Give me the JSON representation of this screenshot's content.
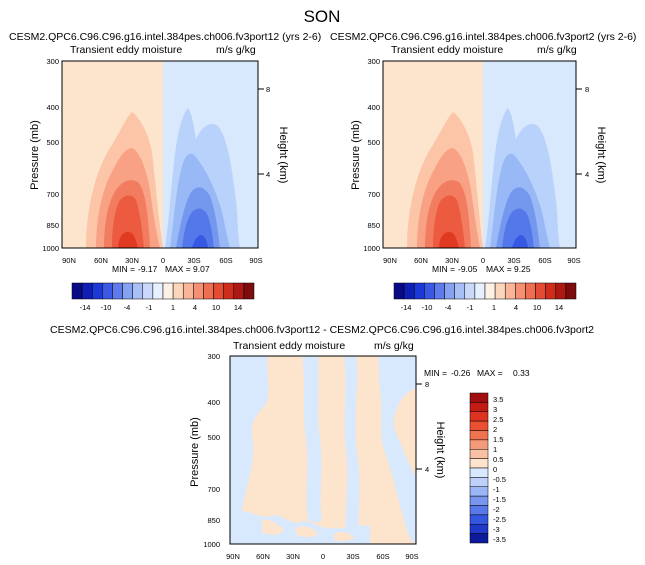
{
  "page": {
    "season": "SON"
  },
  "chart_data": [
    {
      "type": "heatmap",
      "name": "panel-1",
      "case_title": "CESM2.QPC6.C96.C96.g16.intel.384pes.ch006.fv3port12 (yrs 2-6)",
      "variable": "Transient eddy moisture",
      "units": "m/s g/kg",
      "ylabel": "Pressure (mb)",
      "y2label": "Height (km)",
      "x_ticks": [
        "90N",
        "60N",
        "30N",
        "0",
        "30S",
        "60S",
        "90S"
      ],
      "x_values": [
        90,
        60,
        30,
        0,
        -30,
        -60,
        -90
      ],
      "y_ticks": [
        300,
        400,
        500,
        700,
        850,
        1000
      ],
      "y2_ticks": [
        8,
        4
      ],
      "ylim": [
        1000,
        300
      ],
      "min_label": "MIN =",
      "min": "-9.17",
      "max_label": "MAX =",
      "max": "9.07",
      "colorbar": [
        "-14",
        "-10",
        "-4",
        "-1",
        "1",
        "4",
        "10",
        "14"
      ]
    },
    {
      "type": "heatmap",
      "name": "panel-2",
      "case_title": "CESM2.QPC6.C96.C96.g16.intel.384pes.ch006.fv3port2 (yrs 2-6)",
      "variable": "Transient eddy moisture",
      "units": "m/s g/kg",
      "ylabel": "Pressure (mb)",
      "y2label": "Height (km)",
      "x_ticks": [
        "90N",
        "60N",
        "30N",
        "0",
        "30S",
        "60S",
        "90S"
      ],
      "x_values": [
        90,
        60,
        30,
        0,
        -30,
        -60,
        -90
      ],
      "y_ticks": [
        300,
        400,
        500,
        700,
        850,
        1000
      ],
      "y2_ticks": [
        8,
        4
      ],
      "ylim": [
        1000,
        300
      ],
      "min_label": "MIN =",
      "min": "-9.05",
      "max_label": "MAX =",
      "max": "9.25",
      "colorbar": [
        "-14",
        "-10",
        "-4",
        "-1",
        "1",
        "4",
        "10",
        "14"
      ]
    },
    {
      "type": "heatmap",
      "name": "difference",
      "case_title": "CESM2.QPC6.C96.C96.g16.intel.384pes.ch006.fv3port12 - CESM2.QPC6.C96.C96.g16.intel.384pes.ch006.fv3port2",
      "variable": "Transient eddy moisture",
      "units": "m/s g/kg",
      "ylabel": "Pressure (mb)",
      "y2label": "Height (km)",
      "x_ticks": [
        "90N",
        "60N",
        "30N",
        "0",
        "30S",
        "60S",
        "90S"
      ],
      "x_values": [
        90,
        60,
        30,
        0,
        -30,
        -60,
        -90
      ],
      "y_ticks": [
        300,
        400,
        500,
        700,
        850,
        1000
      ],
      "y2_ticks": [
        8,
        4
      ],
      "ylim": [
        1000,
        300
      ],
      "min_label": "MIN =",
      "min": "-0.26",
      "max_label": "MAX =",
      "max": "0.33",
      "colorbar": [
        "3.5",
        "3",
        "2.5",
        "2",
        "1.5",
        "1",
        "0.5",
        "0",
        "-0.5",
        "-1",
        "-1.5",
        "-2",
        "-2.5",
        "-3",
        "-3.5"
      ]
    }
  ],
  "colors": {
    "warm": [
      "#fde4cd",
      "#fcc5a8",
      "#f8a184",
      "#f27c5f",
      "#ec5a3f",
      "#e13a22",
      "#c81e14",
      "#a01010"
    ],
    "cool": [
      "#d8e8fd",
      "#b9d2fb",
      "#98b8f6",
      "#7598ef",
      "#5478ea",
      "#3658e2",
      "#1e38c8",
      "#0a0a8c"
    ],
    "panel_bar": [
      "#090a85",
      "#0f1fb4",
      "#1c38d6",
      "#3a58e4",
      "#5e7aeb",
      "#86a0f2",
      "#a9c0f7",
      "#cad9fb",
      "#e7f0fe",
      "#fdf1e5",
      "#fcd6bc",
      "#f9b597",
      "#f59173",
      "#ee6e51",
      "#e34b32",
      "#cf2d1c",
      "#ae1813",
      "#7d0c0c"
    ],
    "diff_bar": [
      "#a00f0f",
      "#c31c14",
      "#dd3421",
      "#ea5132",
      "#f07350",
      "#f59a78",
      "#f8c1a3",
      "#fde4cd",
      "#d8e8fd",
      "#bdd1fb",
      "#9ab6f6",
      "#7896ee",
      "#5778e9",
      "#3556e0",
      "#1f39c8",
      "#0d1a9c"
    ]
  }
}
